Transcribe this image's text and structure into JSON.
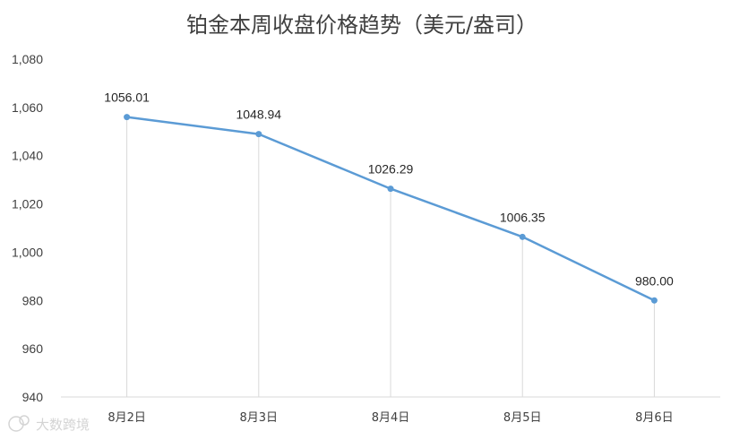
{
  "chart_data": {
    "type": "line",
    "title": "铂金本周收盘价格趋势（美元/盎司）",
    "xlabel": "",
    "ylabel": "",
    "categories": [
      "8月2日",
      "8月3日",
      "8月4日",
      "8月5日",
      "8月6日"
    ],
    "series": [
      {
        "values": [
          1056.01,
          1048.94,
          1026.29,
          1006.35,
          980.0
        ],
        "data_labels": [
          "1056.01",
          "1048.94",
          "1026.29",
          "1006.35",
          "980.00"
        ]
      }
    ],
    "ylim": [
      940,
      1080
    ],
    "yticks": [
      940,
      960,
      980,
      1000,
      1020,
      1040,
      1060,
      1080
    ],
    "ytick_labels": [
      "940",
      "960",
      "980",
      "1,000",
      "1,020",
      "1,040",
      "1,060",
      "1,080"
    ],
    "drop_lines": true,
    "grid": false,
    "legend": "none",
    "colors": {
      "line": "#5b9bd5",
      "drop_line": "#d9d9d9",
      "axis": "#d9d9d9"
    }
  },
  "watermark": {
    "text": "大数跨境",
    "icon": "logo-icon"
  }
}
